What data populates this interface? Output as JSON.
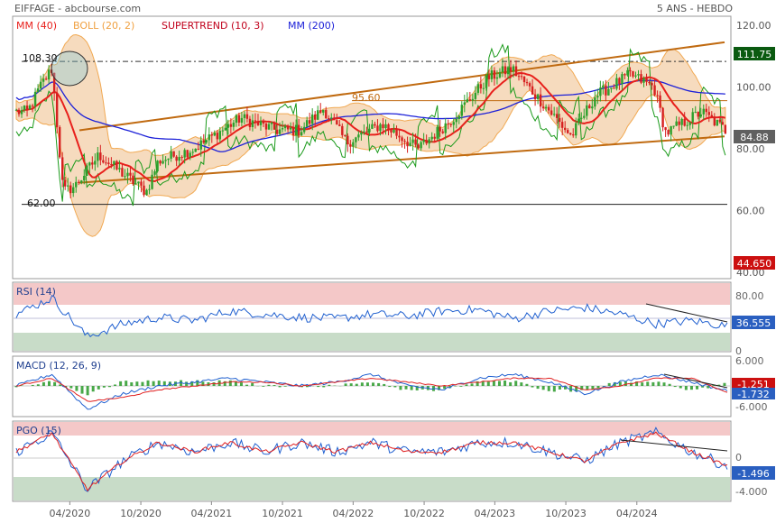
{
  "header": {
    "title": "EIFFAGE - abcbourse.com",
    "period": "5 ANS - HEBDO"
  },
  "legend": [
    {
      "label": "MM (40)",
      "color": "#e8201c"
    },
    {
      "label": "BOLL (20, 2)",
      "color": "#f0a040"
    },
    {
      "label": "SUPERTREND (10, 3)",
      "color": "#c0001b"
    },
    {
      "label": "MM (200)",
      "color": "#1c20d8"
    }
  ],
  "colors": {
    "candle_up": "#2ca02c",
    "candle_down": "#d62020",
    "boll_fill": "#f6d8b8",
    "boll_line": "#f0a040",
    "channel": "#c06a10",
    "ma40": "#e8201c",
    "ma200": "#1c20d8",
    "st_up": "#1a9a1a",
    "st_down": "#d01010",
    "rsi": "#2060d0",
    "signal": "#e02020",
    "hist": "#48a848",
    "zone_hi": "#f4c8c8",
    "zone_lo": "#c8dcc8"
  },
  "main_axis": {
    "ticks": [
      "120.00",
      "100.00",
      "80.00",
      "60.00",
      "40.00"
    ]
  },
  "annotations": {
    "high": "108.30",
    "mid": "95.60",
    "low": "62.00"
  },
  "price_badges": [
    {
      "text": "111.75",
      "bg": "#0a5a10",
      "fg": "#ffffff"
    },
    {
      "text": "84.88",
      "bg": "#606060",
      "fg": "#ffffff"
    },
    {
      "text": "44.650",
      "bg": "#cc1010",
      "fg": "#ffffff"
    }
  ],
  "rsi": {
    "label": "RSI (14)",
    "ticks": [
      "80.00",
      "0"
    ],
    "value": "36.555"
  },
  "macd": {
    "label": "MACD (12, 26, 9)",
    "ticks": [
      "6.000",
      "-6.000"
    ],
    "value1": "-1.251",
    "value2": "-1.732"
  },
  "pgo": {
    "label": "PGO (15)",
    "ticks": [
      "0",
      "-4.000"
    ],
    "value": "-1.496"
  },
  "x_axis": {
    "labels": [
      "04/2020",
      "10/2020",
      "04/2021",
      "10/2021",
      "04/2022",
      "10/2022",
      "04/2023",
      "10/2023",
      "04/2024"
    ]
  },
  "chart_data": {
    "type": "candlestick",
    "title": "EIFFAGE - abcbourse.com",
    "period": "5 ANS - HEBDO",
    "ylim": [
      40,
      120
    ],
    "x_ticks": [
      "04/2020",
      "10/2020",
      "04/2021",
      "10/2021",
      "04/2022",
      "10/2022",
      "04/2023",
      "10/2023",
      "04/2024"
    ],
    "anchors_close": [
      [
        "2019-12",
        92
      ],
      [
        "2020-01",
        100
      ],
      [
        "2020-02",
        106
      ],
      [
        "2020-03",
        66
      ],
      [
        "2020-04",
        68
      ],
      [
        "2020-06",
        78
      ],
      [
        "2020-08",
        72
      ],
      [
        "2020-10",
        66
      ],
      [
        "2020-11",
        76
      ],
      [
        "2021-02",
        80
      ],
      [
        "2021-06",
        90
      ],
      [
        "2021-09",
        86
      ],
      [
        "2021-11",
        86
      ],
      [
        "2022-01",
        93
      ],
      [
        "2022-03",
        82
      ],
      [
        "2022-06",
        88
      ],
      [
        "2022-09",
        80
      ],
      [
        "2022-12",
        90
      ],
      [
        "2023-03",
        103
      ],
      [
        "2023-05",
        106
      ],
      [
        "2023-08",
        93
      ],
      [
        "2023-10",
        84
      ],
      [
        "2023-12",
        97
      ],
      [
        "2024-03",
        104
      ],
      [
        "2024-05",
        100
      ],
      [
        "2024-06",
        85
      ],
      [
        "2024-09",
        92
      ],
      [
        "2024-11",
        86
      ]
    ],
    "series": [
      {
        "name": "MM (40)",
        "values": [
          88,
          96,
          90,
          86,
          82,
          80,
          82,
          85,
          86,
          88,
          90,
          92,
          94,
          95,
          93,
          90,
          92,
          95,
          97,
          94
        ]
      },
      {
        "name": "MM (200)",
        "values": [
          98,
          94,
          90,
          88,
          87,
          87,
          87,
          88,
          88,
          89,
          89,
          89,
          90,
          90,
          90,
          90,
          91,
          91,
          91
        ]
      }
    ],
    "rsi": [
      55,
      80,
      20,
      40,
      50,
      45,
      60,
      55,
      50,
      48,
      55,
      52,
      60,
      62,
      48,
      60,
      65,
      55,
      40,
      45,
      36.555
    ],
    "macd": [
      0,
      3,
      -6,
      -2,
      0,
      1,
      2,
      1,
      0,
      1,
      3,
      0,
      -1,
      2,
      3,
      1,
      -2,
      1,
      3,
      1,
      -1.251
    ],
    "macd_signal": [
      0,
      2,
      -4,
      -3,
      -1,
      0,
      1,
      1,
      0,
      1,
      2,
      1,
      0,
      1,
      2,
      2,
      -1,
      0,
      2,
      2,
      -1.732
    ],
    "pgo": [
      0,
      2,
      -4,
      -1,
      1,
      0,
      1,
      0,
      1,
      0,
      1,
      0,
      0,
      1,
      1,
      0,
      -1,
      1,
      2,
      0,
      -1.496
    ]
  }
}
